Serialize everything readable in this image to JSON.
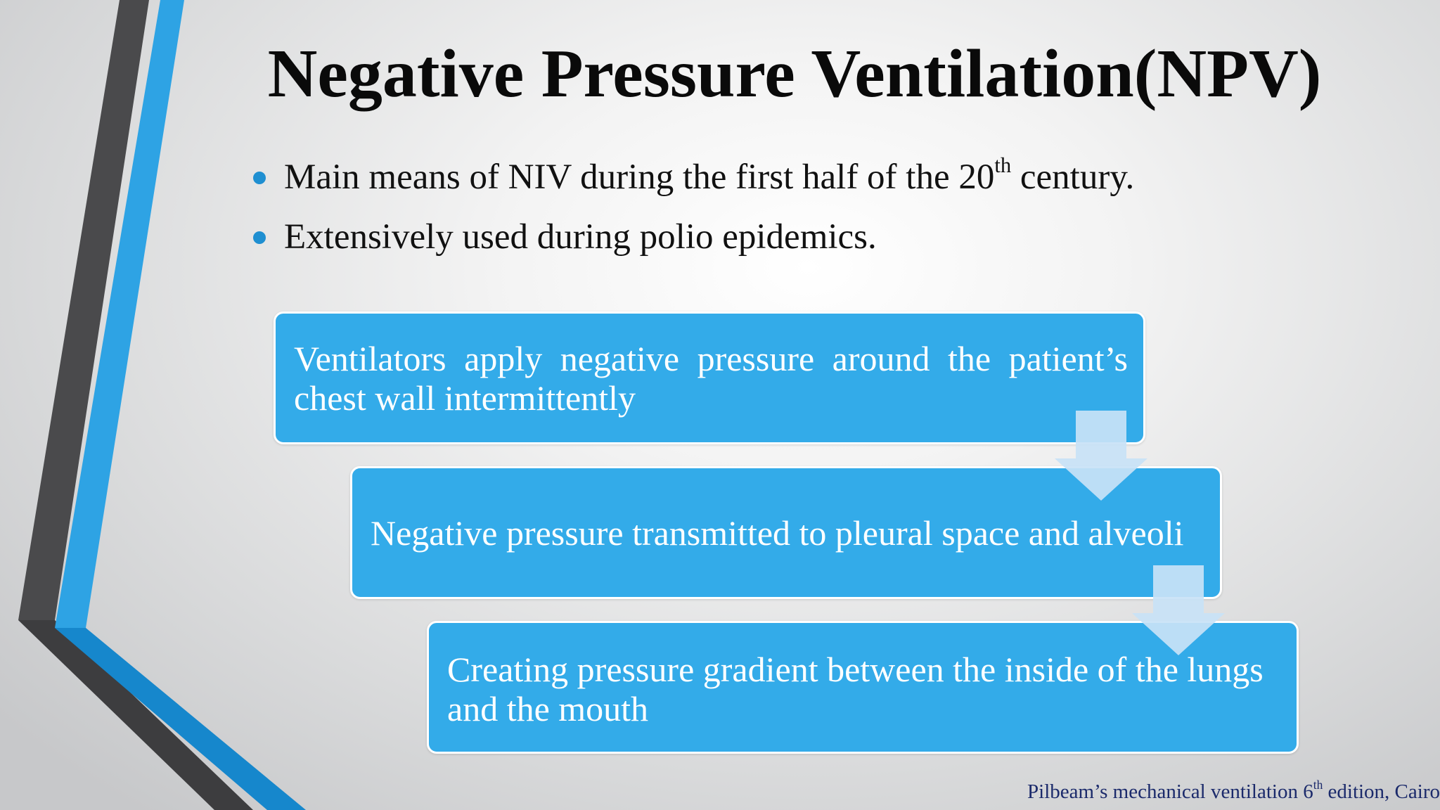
{
  "slide": {
    "title": "Negative Pressure Ventilation(NPV)",
    "bullets": [
      {
        "text_before": "Main means of NIV during the first half of the 20",
        "superscript": "th",
        "text_after": " century."
      },
      {
        "text": "Extensively used during polio epidemics."
      }
    ],
    "flow_steps": [
      {
        "text": "Ventilators apply negative pressure around the patient’s chest wall intermittently"
      },
      {
        "text": "Negative pressure transmitted to pleural space and alveoli"
      },
      {
        "text": "Creating pressure gradient between the inside of the lungs and the mouth"
      }
    ],
    "footer": {
      "text_before": "Pilbeam’s mechanical ventilation 6",
      "superscript": "th",
      "text_after": " edition, Cairo"
    }
  },
  "colors": {
    "bullet": "#1f8fd1",
    "box_fill": "#33abe9",
    "arrow_fill": "#c8e2f6",
    "stripe_blue": "#2ea3e4",
    "stripe_gray": "#4a4a4c",
    "footer_text": "#1b2a6b"
  },
  "icons": {
    "flow_arrow": "down-arrow-icon",
    "bullet": "bullet-dot-icon"
  }
}
